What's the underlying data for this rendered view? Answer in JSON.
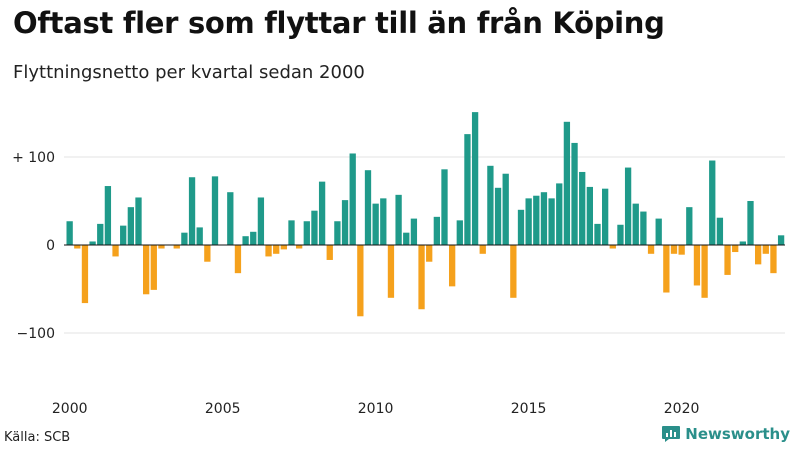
{
  "title": "Oftast fler som flyttar till än från Köping",
  "subtitle": "Flyttningsnetto per kvartal sedan 2000",
  "source": "Källa: SCB",
  "brand": {
    "name": "Newsworthy",
    "icon": "chart-logo-icon"
  },
  "colors": {
    "positive": "#1f9a8a",
    "negative": "#f5a11c",
    "grid": "#e3e3e3",
    "axis": "#111111",
    "brand": "#2a8f8a"
  },
  "chart_data": {
    "type": "bar",
    "title": "Oftast fler som flyttar till än från Köping",
    "subtitle": "Flyttningsnetto per kvartal sedan 2000",
    "xlabel": "",
    "ylabel": "",
    "x_start": "2000 Q1",
    "x_step": "quarter",
    "ylim": [
      -150,
      165
    ],
    "y_ticks": [
      100,
      0,
      -100
    ],
    "y_tick_labels": [
      "+ 100",
      "0",
      "−100"
    ],
    "x_tick_labels": [
      "2000",
      "2005",
      "2010",
      "2015",
      "2020"
    ],
    "grid": true,
    "positive_color": "#1f9a8a",
    "negative_color": "#f5a11c",
    "values": [
      27,
      -4,
      -66,
      4,
      24,
      67,
      -13,
      22,
      43,
      54,
      -56,
      -51,
      -4,
      0,
      -4,
      14,
      77,
      20,
      -19,
      78,
      0,
      60,
      -32,
      10,
      15,
      54,
      -13,
      -10,
      -5,
      28,
      -4,
      27,
      39,
      72,
      -17,
      27,
      51,
      104,
      -81,
      85,
      47,
      53,
      -60,
      57,
      14,
      30,
      -73,
      -19,
      32,
      86,
      -47,
      28,
      126,
      151,
      -10,
      90,
      65,
      81,
      -60,
      40,
      53,
      56,
      60,
      53,
      70,
      140,
      116,
      83,
      66,
      24,
      64,
      -4,
      23,
      88,
      47,
      38,
      -10,
      30,
      -54,
      -10,
      -11,
      43,
      -46,
      -60,
      96,
      31,
      -34,
      -8,
      4,
      50,
      -22,
      -10,
      -32,
      11
    ]
  }
}
